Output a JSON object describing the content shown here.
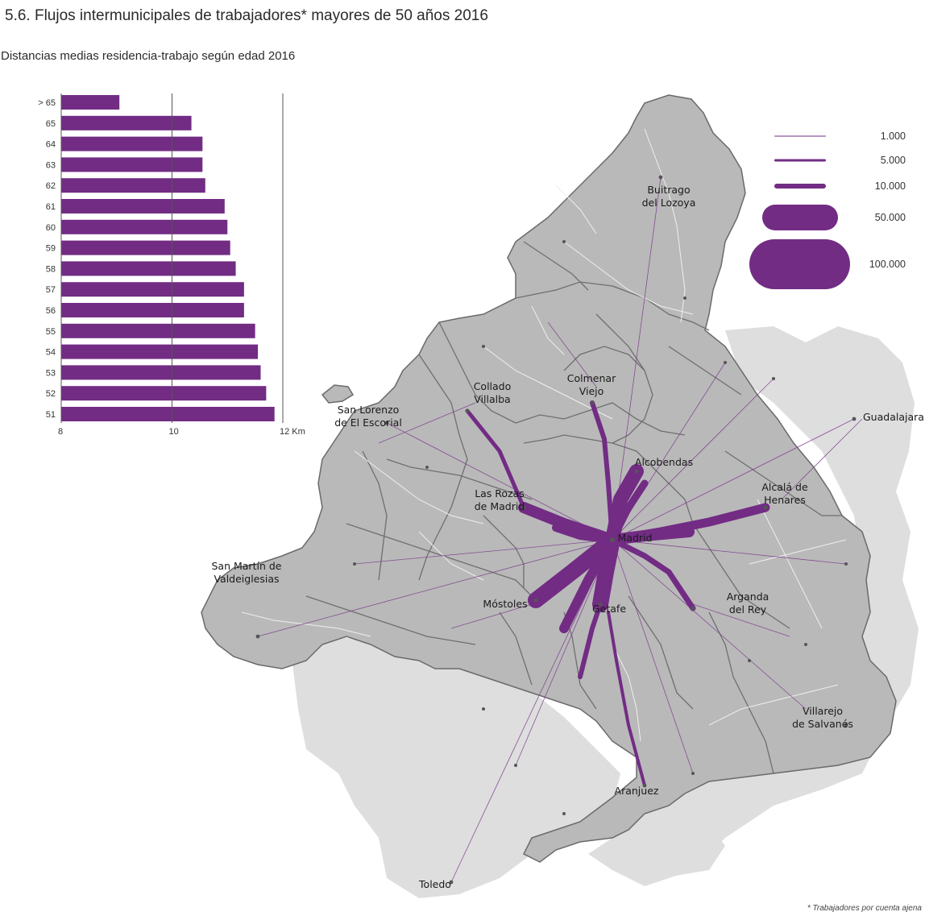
{
  "title": "5.6. Flujos intermunicipales de trabajadores* mayores de 50 años 2016",
  "subtitle": "Distancias medias residencia-trabajo según edad 2016",
  "footnote": "* Trabajadores por cuenta ajena",
  "colors": {
    "flow": "#722c84",
    "region_fill": "#b9b9b9",
    "outside_fill": "#dedede",
    "border": "#6a6a6a",
    "roads": "#f2f2f2"
  },
  "chart_data": {
    "type": "bar",
    "orientation": "horizontal",
    "categories": [
      "> 65",
      "65",
      "64",
      "63",
      "62",
      "61",
      "60",
      "59",
      "58",
      "57",
      "56",
      "55",
      "54",
      "53",
      "52",
      "51"
    ],
    "values": [
      9.05,
      10.35,
      10.55,
      10.55,
      10.6,
      10.95,
      11.0,
      11.05,
      11.15,
      11.3,
      11.3,
      11.5,
      11.55,
      11.6,
      11.7,
      11.85
    ],
    "x_ticks": [
      "8",
      "10",
      "12 Km"
    ],
    "xlim": [
      8,
      12
    ],
    "grid_lines_at": [
      10,
      12
    ]
  },
  "legend": {
    "items": [
      {
        "label": "1.000",
        "value": 1000
      },
      {
        "label": "5.000",
        "value": 5000
      },
      {
        "label": "10.000",
        "value": 10000
      },
      {
        "label": "50.000",
        "value": 50000
      },
      {
        "label": "100.000",
        "value": 100000
      }
    ]
  },
  "cities": [
    {
      "id": "buitrago",
      "lines": [
        "Buitrago",
        "del Lozoya"
      ]
    },
    {
      "id": "collado",
      "lines": [
        "Collado",
        "Villalba"
      ]
    },
    {
      "id": "colmenar",
      "lines": [
        "Colmenar",
        "Viejo"
      ]
    },
    {
      "id": "sanlorenzo",
      "lines": [
        "San Lorenzo",
        "de El Escorial"
      ]
    },
    {
      "id": "guadalajara",
      "lines": [
        "Guadalajara"
      ]
    },
    {
      "id": "alcobendas",
      "lines": [
        "Alcobendas"
      ]
    },
    {
      "id": "alcala",
      "lines": [
        "Alcalá de",
        "Henares"
      ]
    },
    {
      "id": "rozas",
      "lines": [
        "Las Rozas",
        "de Madrid"
      ]
    },
    {
      "id": "madrid",
      "lines": [
        "Madrid"
      ]
    },
    {
      "id": "sanmartin",
      "lines": [
        "San Martín de",
        "Valdeiglesias"
      ]
    },
    {
      "id": "arganda",
      "lines": [
        "Arganda",
        "del Rey"
      ]
    },
    {
      "id": "mostoles",
      "lines": [
        "Móstoles"
      ]
    },
    {
      "id": "getafe",
      "lines": [
        "Getafe"
      ]
    },
    {
      "id": "villarejo",
      "lines": [
        "Villarejo",
        "de Salvanés"
      ]
    },
    {
      "id": "aranjuez",
      "lines": [
        "Aranjuez"
      ]
    },
    {
      "id": "toledo",
      "lines": [
        "Toledo"
      ]
    }
  ]
}
